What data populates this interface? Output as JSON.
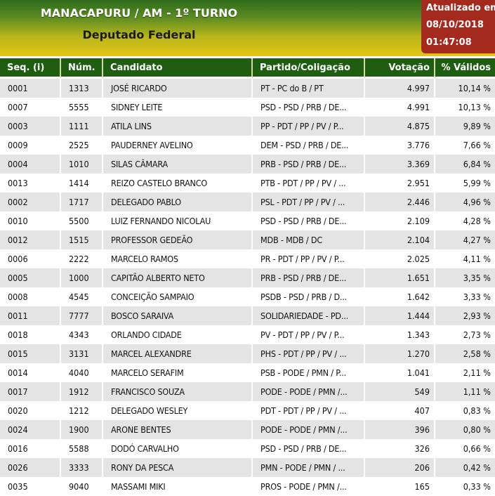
{
  "header": {
    "title": "MANACAPURU / AM - 1º TURNO",
    "subtitle": "Deputado Federal",
    "updated_label": "Atualizado em",
    "updated_date": "08/10/2018",
    "updated_time": "01:47:08"
  },
  "table": {
    "columns": [
      "Seq.   (i)",
      "Núm.",
      "Candidato",
      "Partido/Coligação",
      "Votação",
      "% Válidos"
    ],
    "rows": [
      [
        "0001",
        "1313",
        "JOSÉ RICARDO",
        "PT - PC do B / PT",
        "4.997",
        "10,14 %"
      ],
      [
        "0007",
        "5555",
        "SIDNEY LEITE",
        "PSD - PSD / PRB / DE...",
        "4.991",
        "10,13 %"
      ],
      [
        "0003",
        "1111",
        "ATILA LINS",
        "PP - PDT / PP / PV / P...",
        "4.875",
        "9,89 %"
      ],
      [
        "0009",
        "2525",
        "PAUDERNEY AVELINO",
        "DEM - PSD / PRB / DE...",
        "3.776",
        "7,66 %"
      ],
      [
        "0004",
        "1010",
        "SILAS CÂMARA",
        "PRB - PSD / PRB / DE...",
        "3.369",
        "6,84 %"
      ],
      [
        "0013",
        "1414",
        "REIZO CASTELO BRANCO",
        "PTB - PDT / PP / PV / ...",
        "2.951",
        "5,99 %"
      ],
      [
        "0002",
        "1717",
        "DELEGADO PABLO",
        "PSL - PDT / PP / PV / ...",
        "2.446",
        "4,96 %"
      ],
      [
        "0010",
        "5500",
        "LUIZ FERNANDO NICOLAU",
        "PSD - PSD / PRB / DE...",
        "2.109",
        "4,28 %"
      ],
      [
        "0012",
        "1515",
        "PROFESSOR GEDEÃO",
        "MDB - MDB / DC",
        "2.104",
        "4,27 %"
      ],
      [
        "0006",
        "2222",
        "MARCELO RAMOS",
        "PR - PDT / PP / PV / P...",
        "2.025",
        "4,11 %"
      ],
      [
        "0005",
        "1000",
        "CAPITÃO ALBERTO NETO",
        "PRB - PSD / PRB / DE...",
        "1.651",
        "3,35 %"
      ],
      [
        "0008",
        "4545",
        "CONCEIÇÃO SAMPAIO",
        "PSDB - PSD / PRB / D...",
        "1.642",
        "3,33 %"
      ],
      [
        "0011",
        "7777",
        "BOSCO SARAIVA",
        "SOLIDARIEDADE - PD...",
        "1.444",
        "2,93 %"
      ],
      [
        "0018",
        "4343",
        "ORLANDO CIDADE",
        "PV - PDT / PP / PV / P...",
        "1.343",
        "2,73 %"
      ],
      [
        "0015",
        "3131",
        "MARCEL ALEXANDRE",
        "PHS - PDT / PP / PV / ...",
        "1.270",
        "2,58 %"
      ],
      [
        "0014",
        "4040",
        "MARCELO SERAFIM",
        "PSB - PODE / PMN / P...",
        "1.041",
        "2,11 %"
      ],
      [
        "0017",
        "1912",
        "FRANCISCO SOUZA",
        "PODE - PODE / PMN /...",
        "549",
        "1,11 %"
      ],
      [
        "0020",
        "1212",
        "DELEGADO WESLEY",
        "PDT - PDT / PP / PV / ...",
        "407",
        "0,83 %"
      ],
      [
        "0024",
        "1900",
        "ARONE BENTES",
        "PODE - PODE / PMN /...",
        "396",
        "0,80 %"
      ],
      [
        "0016",
        "5588",
        "DODÓ CARVALHO",
        "PSD - PSD / PRB / DE...",
        "326",
        "0,66 %"
      ],
      [
        "0026",
        "3333",
        "RONY DA PESCA",
        "PMN - PODE / PMN / ...",
        "206",
        "0,42 %"
      ],
      [
        "0035",
        "9040",
        "MASSAMI MIKI",
        "PROS - PODE / PMN /...",
        "165",
        "0,33 %"
      ]
    ]
  },
  "colors": {
    "header_green": "#2f6b1c",
    "header_yellow": "#e3c514",
    "updated_red": "#a52a1e",
    "table_header_green": "#1f5e11",
    "row_alt_gray": "#e4e4e4"
  }
}
